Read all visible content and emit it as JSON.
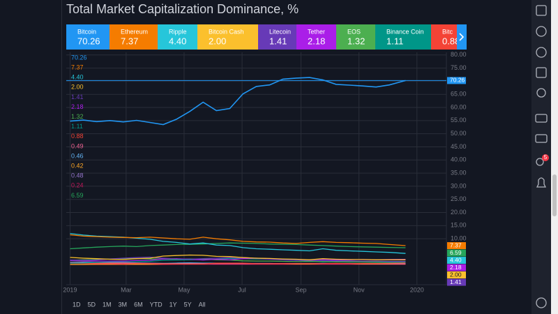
{
  "chart_data": {
    "type": "line",
    "title": "Total Market Capitalization Dominance, %",
    "x": [
      0,
      14,
      28,
      42,
      56,
      70,
      84,
      98,
      112,
      126,
      140,
      154,
      168,
      182,
      196,
      210,
      224,
      238,
      252,
      266,
      280,
      294,
      308,
      322,
      336,
      353
    ],
    "xlim": [
      -4,
      396
    ],
    "xticks": [
      {
        "value": 0,
        "label": "2019"
      },
      {
        "value": 59,
        "label": "Mar"
      },
      {
        "value": 120,
        "label": "May"
      },
      {
        "value": 181,
        "label": "Jul"
      },
      {
        "value": 243,
        "label": "Sep"
      },
      {
        "value": 304,
        "label": "Nov"
      },
      {
        "value": 365,
        "label": "2020"
      }
    ],
    "ylim": [
      -7.5,
      81
    ],
    "yticks": [
      {
        "value": 10,
        "label": "10.00"
      },
      {
        "value": 15,
        "label": "15.00"
      },
      {
        "value": 20,
        "label": "20.00"
      },
      {
        "value": 25,
        "label": "25.00"
      },
      {
        "value": 30,
        "label": "30.00"
      },
      {
        "value": 35,
        "label": "35.00"
      },
      {
        "value": 40,
        "label": "40.00"
      },
      {
        "value": 45,
        "label": "45.00"
      },
      {
        "value": 50,
        "label": "50.00"
      },
      {
        "value": 55,
        "label": "55.00"
      },
      {
        "value": 60,
        "label": "60.00"
      },
      {
        "value": 65,
        "label": "65.00"
      },
      {
        "value": 70,
        "label": "70.00"
      },
      {
        "value": 75,
        "label": "75.00"
      },
      {
        "value": 80,
        "label": "80.00"
      }
    ],
    "grid": true,
    "series": [
      {
        "name": "Bitcoin",
        "color": "#2196f3",
        "tag": true,
        "last_label": "70.26",
        "values": [
          54.8,
          55.2,
          54.6,
          55.0,
          54.5,
          55.1,
          54.3,
          53.5,
          55.5,
          58.5,
          62.0,
          58.8,
          59.6,
          65.2,
          68.0,
          68.6,
          70.8,
          71.2,
          71.4,
          70.5,
          68.8,
          68.5,
          68.2,
          67.8,
          68.6,
          70.26
        ]
      },
      {
        "name": "Ethereum",
        "color": "#f57c00",
        "tag": true,
        "last_label": "7.37",
        "values": [
          11.5,
          11.0,
          10.8,
          10.6,
          10.5,
          10.4,
          10.6,
          10.3,
          10.0,
          9.8,
          10.6,
          10.0,
          9.6,
          9.0,
          8.8,
          8.7,
          8.4,
          8.2,
          8.6,
          8.9,
          8.6,
          8.5,
          8.3,
          8.2,
          7.8,
          7.37
        ]
      },
      {
        "name": "Ripple",
        "color": "#26c6da",
        "tag": true,
        "last_label": "4.40",
        "values": [
          12.0,
          11.4,
          11.0,
          10.8,
          10.6,
          10.2,
          9.8,
          9.0,
          8.6,
          8.0,
          8.4,
          7.6,
          7.4,
          6.6,
          6.2,
          6.0,
          5.8,
          5.6,
          5.4,
          6.2,
          5.6,
          5.4,
          5.2,
          5.0,
          4.8,
          4.4
        ]
      },
      {
        "name": "Bitcoin Cash",
        "color": "#fbc02d",
        "tag": true,
        "last_label": "2.00",
        "values": [
          2.9,
          2.6,
          2.4,
          2.2,
          2.1,
          2.4,
          2.6,
          3.4,
          3.6,
          3.8,
          3.7,
          3.3,
          3.2,
          2.8,
          2.6,
          2.5,
          2.3,
          2.2,
          2.0,
          2.4,
          2.2,
          2.1,
          2.1,
          2.0,
          2.0,
          2
        ]
      },
      {
        "name": "Litecoin",
        "color": "#673ab7",
        "tag": true,
        "last_label": "1.41",
        "values": [
          1.9,
          1.8,
          1.9,
          2.3,
          2.6,
          2.8,
          3.0,
          2.6,
          2.3,
          2.2,
          2.4,
          2.6,
          2.8,
          2.9,
          2.5,
          2.2,
          2.0,
          1.8,
          1.7,
          1.7,
          1.6,
          1.6,
          1.5,
          1.5,
          1.4,
          1.41
        ]
      },
      {
        "name": "Tether",
        "color": "#aa1ee8",
        "tag": true,
        "last_label": "2.18",
        "values": [
          1.7,
          1.6,
          1.5,
          1.5,
          1.5,
          1.7,
          1.8,
          2.3,
          2.4,
          2.2,
          1.9,
          2.2,
          2.0,
          2.4,
          2.6,
          2.3,
          2.0,
          1.8,
          2.0,
          2.1,
          1.9,
          2.0,
          2.1,
          2.0,
          2.1,
          2.18
        ]
      },
      {
        "name": "EOS",
        "color": "#4caf50",
        "last_label": "1.32",
        "values": [
          1.8,
          2.0,
          2.1,
          2.3,
          2.4,
          2.5,
          2.3,
          2.3,
          2.2,
          2.3,
          2.3,
          2.0,
          1.9,
          1.6,
          1.5,
          1.5,
          1.4,
          1.3,
          1.3,
          1.3,
          1.2,
          1.2,
          1.2,
          1.2,
          1.3,
          1.32
        ]
      },
      {
        "name": "Binance Coin",
        "color": "#009688",
        "last_label": "1.11",
        "values": [
          0.7,
          0.8,
          1.0,
          1.2,
          1.3,
          1.3,
          1.4,
          1.8,
          1.9,
          2.0,
          2.1,
          2.2,
          2.5,
          2.4,
          2.3,
          2.3,
          2.2,
          1.9,
          1.4,
          1.2,
          1.2,
          1.1,
          1.1,
          1.0,
          1.0,
          1.11
        ]
      },
      {
        "name": "Bitc",
        "color": "#f44336",
        "last_label": "0.88",
        "values": [
          0.7,
          0.6,
          0.5,
          0.5,
          0.4,
          0.6,
          0.5,
          0.4,
          0.4,
          0.4,
          0.4,
          0.7,
          0.7,
          0.7,
          0.5,
          0.5,
          0.5,
          0.5,
          0.5,
          0.5,
          0.6,
          0.5,
          0.6,
          0.6,
          0.7,
          0.88
        ]
      },
      {
        "color": "#f06292",
        "last_label": "0.49",
        "values": [
          0.9,
          0.9,
          0.8,
          0.8,
          0.8,
          0.7,
          0.6,
          0.5,
          0.5,
          0.5,
          0.5,
          0.5,
          0.5,
          0.5,
          0.5,
          0.5,
          0.5,
          0.5,
          0.5,
          0.5,
          0.5,
          0.5,
          0.5,
          0.5,
          0.5,
          0.49
        ]
      },
      {
        "color": "#64b5f6",
        "last_label": "0.46",
        "values": [
          1.0,
          1.1,
          1.0,
          0.9,
          0.9,
          0.8,
          0.7,
          0.6,
          0.7,
          0.8,
          0.7,
          0.7,
          0.6,
          0.6,
          0.6,
          0.6,
          0.5,
          0.5,
          0.5,
          0.6,
          0.5,
          0.5,
          0.5,
          0.5,
          0.5,
          0.46
        ]
      },
      {
        "color": "#ffa726",
        "last_label": "0.42",
        "values": [
          0.2,
          0.2,
          0.3,
          0.3,
          0.3,
          0.3,
          0.3,
          0.4,
          0.4,
          0.4,
          0.5,
          0.5,
          0.5,
          0.5,
          0.5,
          0.5,
          0.5,
          0.4,
          0.4,
          0.5,
          0.5,
          0.5,
          0.4,
          0.4,
          0.4,
          0.42
        ]
      },
      {
        "color": "#9575cd",
        "last_label": "0.48",
        "values": [
          0.9,
          0.8,
          0.8,
          0.7,
          0.7,
          0.6,
          0.6,
          0.6,
          0.5,
          0.5,
          0.5,
          0.5,
          0.5,
          0.5,
          0.5,
          0.5,
          0.5,
          0.5,
          0.5,
          0.5,
          0.5,
          0.5,
          0.5,
          0.5,
          0.5,
          0.48
        ]
      },
      {
        "color": "#c2185b",
        "last_label": "0.24",
        "values": [
          0.2,
          0.2,
          0.2,
          0.2,
          0.2,
          0.2,
          0.2,
          0.2,
          0.3,
          0.3,
          0.3,
          0.3,
          0.3,
          0.3,
          0.3,
          0.3,
          0.3,
          0.3,
          0.3,
          0.3,
          0.3,
          0.3,
          0.3,
          0.3,
          0.3,
          0.24
        ]
      },
      {
        "color": "#26a65b",
        "tag": true,
        "last_label": "6.59",
        "values": [
          6.2,
          6.5,
          6.8,
          7.0,
          7.2,
          7.0,
          7.4,
          7.6,
          7.8,
          7.9,
          8.0,
          8.2,
          8.4,
          8.3,
          8.2,
          8.0,
          7.9,
          7.8,
          7.6,
          7.4,
          7.2,
          7.0,
          6.9,
          6.8,
          6.7,
          6.59
        ]
      }
    ]
  },
  "toolbar": [
    "1D",
    "5D",
    "1M",
    "3M",
    "6M",
    "YTD",
    "1Y",
    "5Y",
    "All"
  ],
  "sidebar": {
    "badge": "5"
  }
}
